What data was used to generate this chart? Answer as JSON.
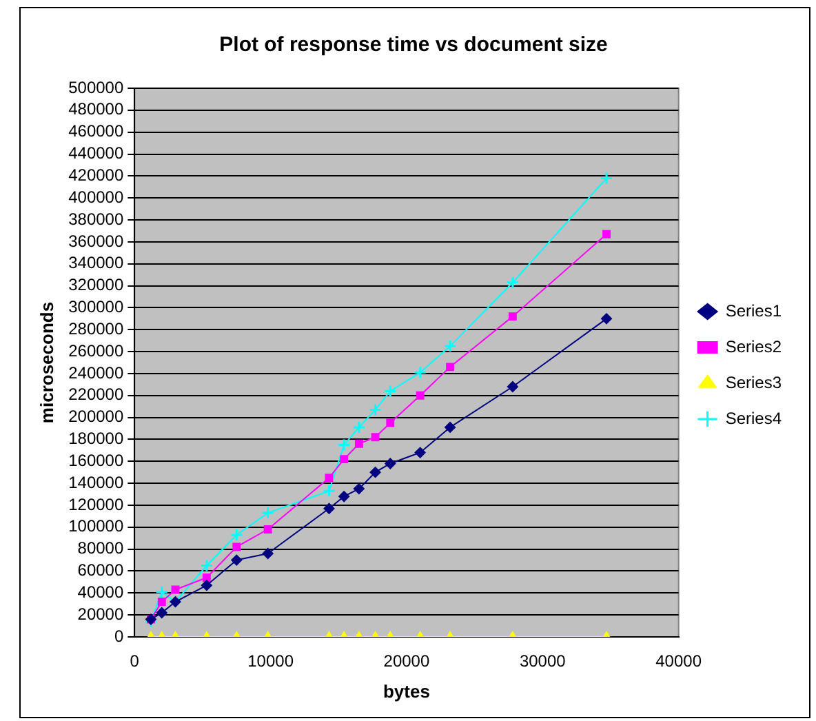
{
  "chart_data": {
    "type": "line",
    "title": "Plot of response time vs document size",
    "xlabel": "bytes",
    "ylabel": "microseconds",
    "x": [
      1200,
      2000,
      3000,
      5300,
      7500,
      9800,
      14300,
      15400,
      16500,
      17700,
      18800,
      21000,
      23200,
      27800,
      34700
    ],
    "series": [
      {
        "name": "Series1",
        "color": "#000080",
        "marker": "diamond",
        "values": [
          16000,
          22000,
          32000,
          47000,
          70000,
          76000,
          117000,
          128000,
          135000,
          150000,
          158000,
          168000,
          191000,
          228000,
          290000
        ]
      },
      {
        "name": "Series2",
        "color": "#ff00ff",
        "marker": "square",
        "values": [
          16000,
          32000,
          43000,
          54000,
          82000,
          98000,
          145000,
          162000,
          176000,
          182000,
          195000,
          220000,
          246000,
          292000,
          367000
        ]
      },
      {
        "name": "Series3",
        "color": "#ffff00",
        "marker": "triangle",
        "values": [
          0,
          0,
          0,
          0,
          0,
          0,
          0,
          0,
          0,
          0,
          0,
          0,
          0,
          0,
          0
        ]
      },
      {
        "name": "Series4",
        "color": "#00ffff",
        "marker": "cross",
        "values": [
          14000,
          41000,
          32000,
          65000,
          93000,
          113000,
          133000,
          175000,
          191000,
          207000,
          224000,
          241000,
          265000,
          323000,
          418000
        ]
      }
    ],
    "xlim": [
      0,
      40000
    ],
    "xticks": [
      0,
      10000,
      20000,
      30000,
      40000
    ],
    "ylim": [
      0,
      500000
    ],
    "yticks": [
      0,
      20000,
      40000,
      60000,
      80000,
      100000,
      120000,
      140000,
      160000,
      180000,
      200000,
      220000,
      240000,
      260000,
      280000,
      300000,
      320000,
      340000,
      360000,
      380000,
      400000,
      420000,
      440000,
      460000,
      480000,
      500000
    ],
    "grid": "y",
    "legend": "right"
  }
}
